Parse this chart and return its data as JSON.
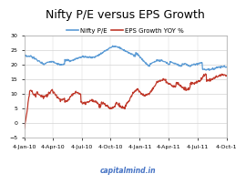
{
  "title": "Nifty P/E versus EPS Growth",
  "legend_labels": [
    "Nifty P/E",
    "EPS Growth YOY %"
  ],
  "line1_color": "#5B9BD5",
  "line2_color": "#C0392B",
  "background_color": "#FFFFFF",
  "plot_bg_color": "#FFFFFF",
  "ylim": [
    -5,
    30
  ],
  "yticks": [
    -5,
    0,
    5,
    10,
    15,
    20,
    25,
    30
  ],
  "xlabel_tick_labels": [
    "4-Jan-10",
    "4-Apr-10",
    "4-Jul-10",
    "4-Oct-10",
    "4-Jan-11",
    "4-Apr-11",
    "4-Jul-11",
    "4-Oct-1"
  ],
  "watermark": "capitalmind.in",
  "grid_color": "#D3D3D3",
  "title_fontsize": 9,
  "tick_fontsize": 4.5,
  "legend_fontsize": 5.0,
  "border_color": "#AAAAAA"
}
